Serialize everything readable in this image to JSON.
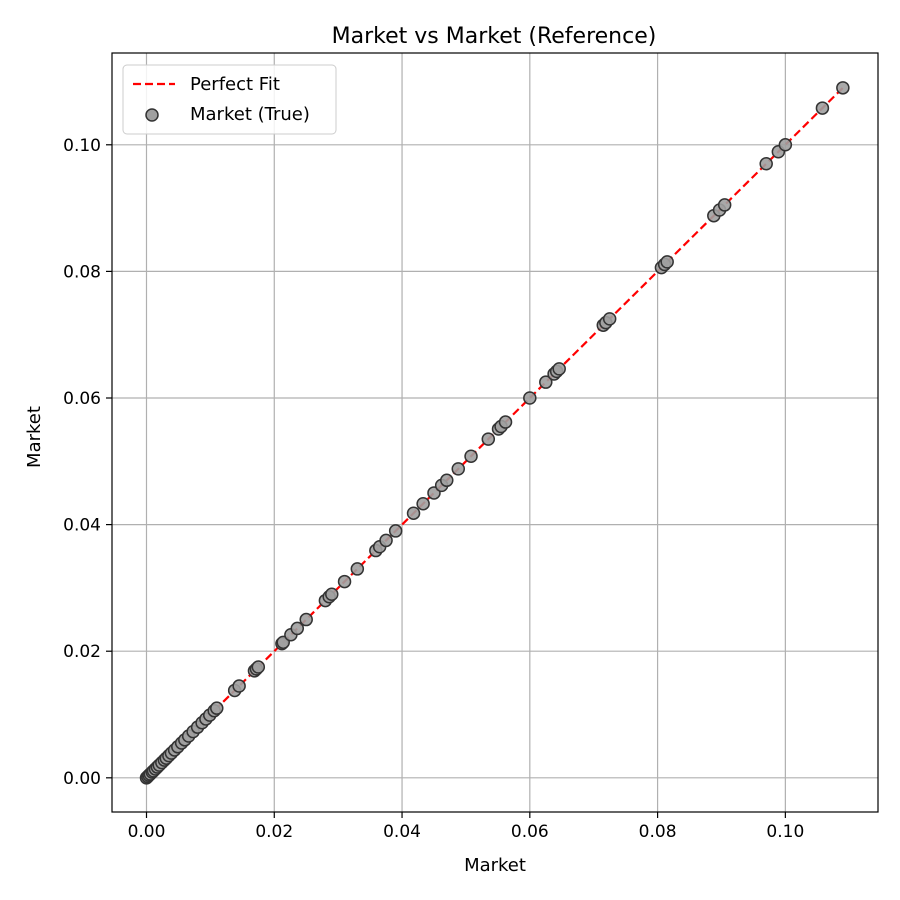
{
  "chart_data": {
    "type": "scatter",
    "title": "Market vs Market (Reference)",
    "xlabel": "Market",
    "ylabel": "Market",
    "xlim": [
      -0.0054,
      0.1145
    ],
    "ylim": [
      -0.0054,
      0.1145
    ],
    "xticks": [
      0.0,
      0.02,
      0.04,
      0.06,
      0.08,
      0.1
    ],
    "yticks": [
      0.0,
      0.02,
      0.04,
      0.06,
      0.08,
      0.1
    ],
    "xtick_labels": [
      "0.00",
      "0.02",
      "0.04",
      "0.06",
      "0.08",
      "0.10"
    ],
    "ytick_labels": [
      "0.00",
      "0.02",
      "0.04",
      "0.06",
      "0.08",
      "0.10"
    ],
    "grid": true,
    "legend_position": "top-left",
    "colors": {
      "fit_line": "#ff0000",
      "point_fill": "#a0a0a0",
      "point_edge": "#333333",
      "grid": "#b0b0b0"
    },
    "series": [
      {
        "name": "Perfect Fit",
        "kind": "line",
        "style": "dashed",
        "x": [
          0.0,
          0.109
        ],
        "y": [
          0.0,
          0.109
        ]
      },
      {
        "name": "Market (True)",
        "kind": "scatter",
        "points": [
          [
            0.0,
            0.0
          ],
          [
            0.0002,
            0.0002
          ],
          [
            0.0004,
            0.0004
          ],
          [
            0.0006,
            0.0006
          ],
          [
            0.0009,
            0.0009
          ],
          [
            0.0011,
            0.0011
          ],
          [
            0.0014,
            0.0014
          ],
          [
            0.0017,
            0.0017
          ],
          [
            0.002,
            0.002
          ],
          [
            0.0024,
            0.0024
          ],
          [
            0.0028,
            0.0028
          ],
          [
            0.0031,
            0.0031
          ],
          [
            0.0035,
            0.0035
          ],
          [
            0.0039,
            0.0039
          ],
          [
            0.0044,
            0.0044
          ],
          [
            0.0049,
            0.0049
          ],
          [
            0.0055,
            0.0055
          ],
          [
            0.006,
            0.006
          ],
          [
            0.0066,
            0.0066
          ],
          [
            0.0073,
            0.0073
          ],
          [
            0.008,
            0.008
          ],
          [
            0.0087,
            0.0087
          ],
          [
            0.0093,
            0.0093
          ],
          [
            0.0099,
            0.0099
          ],
          [
            0.0106,
            0.0106
          ],
          [
            0.011,
            0.011
          ],
          [
            0.0138,
            0.0138
          ],
          [
            0.0145,
            0.0145
          ],
          [
            0.0169,
            0.0169
          ],
          [
            0.0172,
            0.0172
          ],
          [
            0.0175,
            0.0175
          ],
          [
            0.0212,
            0.0212
          ],
          [
            0.0214,
            0.0214
          ],
          [
            0.0226,
            0.0226
          ],
          [
            0.0236,
            0.0236
          ],
          [
            0.025,
            0.025
          ],
          [
            0.028,
            0.028
          ],
          [
            0.0286,
            0.0286
          ],
          [
            0.029,
            0.029
          ],
          [
            0.031,
            0.031
          ],
          [
            0.033,
            0.033
          ],
          [
            0.0359,
            0.0359
          ],
          [
            0.0365,
            0.0365
          ],
          [
            0.0375,
            0.0375
          ],
          [
            0.039,
            0.039
          ],
          [
            0.0418,
            0.0418
          ],
          [
            0.0433,
            0.0433
          ],
          [
            0.045,
            0.045
          ],
          [
            0.0462,
            0.0462
          ],
          [
            0.047,
            0.047
          ],
          [
            0.0488,
            0.0488
          ],
          [
            0.0508,
            0.0508
          ],
          [
            0.0535,
            0.0535
          ],
          [
            0.0551,
            0.0551
          ],
          [
            0.0555,
            0.0555
          ],
          [
            0.0562,
            0.0562
          ],
          [
            0.06,
            0.06
          ],
          [
            0.0625,
            0.0625
          ],
          [
            0.0638,
            0.0638
          ],
          [
            0.0642,
            0.0642
          ],
          [
            0.0646,
            0.0646
          ],
          [
            0.0715,
            0.0715
          ],
          [
            0.0719,
            0.0719
          ],
          [
            0.0725,
            0.0725
          ],
          [
            0.0806,
            0.0806
          ],
          [
            0.0811,
            0.0811
          ],
          [
            0.0815,
            0.0815
          ],
          [
            0.0888,
            0.0888
          ],
          [
            0.0897,
            0.0897
          ],
          [
            0.0905,
            0.0905
          ],
          [
            0.097,
            0.097
          ],
          [
            0.0989,
            0.0989
          ],
          [
            0.1,
            0.1
          ],
          [
            0.1058,
            0.1058
          ],
          [
            0.109,
            0.109
          ]
        ]
      }
    ]
  }
}
